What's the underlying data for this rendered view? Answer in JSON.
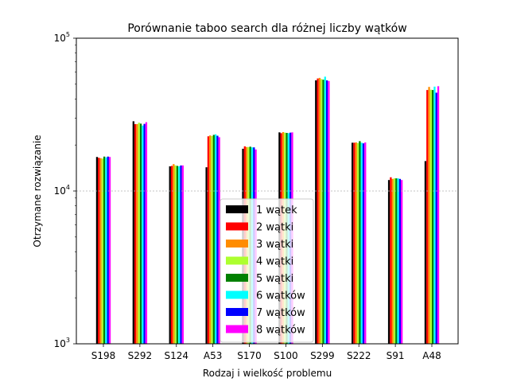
{
  "chart_data": {
    "type": "bar",
    "title": "Porównanie taboo search dla różnej liczby wątków",
    "xlabel": "Rodzaj i wielkość problemu",
    "ylabel": "Otrzymane rozwiązanie",
    "yscale": "log",
    "ylim": [
      1000,
      100000
    ],
    "y_major_ticks": [
      {
        "value": 1000,
        "label": "10",
        "exp": "3"
      },
      {
        "value": 10000,
        "label": "10",
        "exp": "4"
      },
      {
        "value": 100000,
        "label": "10",
        "exp": "5"
      }
    ],
    "grid": "horizontal dashed at major ticks",
    "legend_position": "lower-center",
    "categories": [
      "S198",
      "S292",
      "S124",
      "A53",
      "S170",
      "S100",
      "S299",
      "S222",
      "S91",
      "A48"
    ],
    "series": [
      {
        "name": "1 wątek",
        "color": "#000000",
        "values": [
          16700,
          28600,
          14500,
          14300,
          18900,
          24200,
          53000,
          20700,
          11800,
          15700
        ]
      },
      {
        "name": "2 wątki",
        "color": "#ff0000",
        "values": [
          16500,
          27400,
          14600,
          22800,
          19600,
          23900,
          54500,
          20700,
          12300,
          45800
        ]
      },
      {
        "name": "3 wątki",
        "color": "#ff8c00",
        "values": [
          16400,
          27400,
          15000,
          23100,
          19400,
          24300,
          55000,
          20800,
          12000,
          48000
        ]
      },
      {
        "name": "4 wątki",
        "color": "#adff2f",
        "values": [
          16300,
          28000,
          14700,
          22900,
          19400,
          24100,
          54000,
          20600,
          12100,
          46000
        ]
      },
      {
        "name": "5 wątki",
        "color": "#008000",
        "values": [
          16800,
          27600,
          14600,
          23300,
          19500,
          24000,
          53500,
          21200,
          12100,
          45800
        ]
      },
      {
        "name": "6 wątków",
        "color": "#00ffff",
        "values": [
          16600,
          26800,
          14500,
          23500,
          19300,
          23900,
          56000,
          20700,
          12100,
          48200
        ]
      },
      {
        "name": "7 wątków",
        "color": "#0000ff",
        "values": [
          16800,
          27500,
          14700,
          23000,
          19300,
          24100,
          53000,
          20500,
          12000,
          44000
        ]
      },
      {
        "name": "8 wątków",
        "color": "#ff00ff",
        "values": [
          16700,
          28200,
          14700,
          22500,
          18700,
          24200,
          52500,
          20800,
          11800,
          48500
        ]
      }
    ]
  }
}
